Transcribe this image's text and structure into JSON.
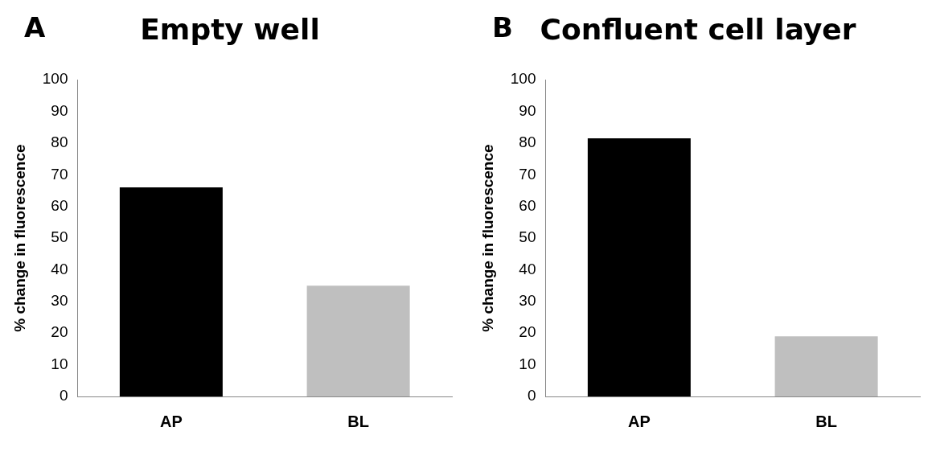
{
  "chart_data": [
    {
      "type": "bar",
      "title": "Empty well",
      "annotations": [
        "A"
      ],
      "ylabel": "% change in fluorescence",
      "categories": [
        "AP",
        "BL"
      ],
      "values": [
        66,
        35
      ],
      "colors": [
        "#000000",
        "#bfbfbf"
      ],
      "ylim": [
        0,
        100
      ],
      "yticks": [
        0,
        10,
        20,
        30,
        40,
        50,
        60,
        70,
        80,
        90,
        100
      ],
      "grid": false,
      "legend": false
    },
    {
      "type": "bar",
      "title": "Confluent cell layer",
      "annotations": [
        "B"
      ],
      "ylabel": "% change in fluorescence",
      "categories": [
        "AP",
        "BL"
      ],
      "values": [
        81.5,
        19
      ],
      "colors": [
        "#000000",
        "#bfbfbf"
      ],
      "ylim": [
        0,
        100
      ],
      "yticks": [
        0,
        10,
        20,
        30,
        40,
        50,
        60,
        70,
        80,
        90,
        100
      ],
      "grid": false,
      "legend": false
    }
  ]
}
